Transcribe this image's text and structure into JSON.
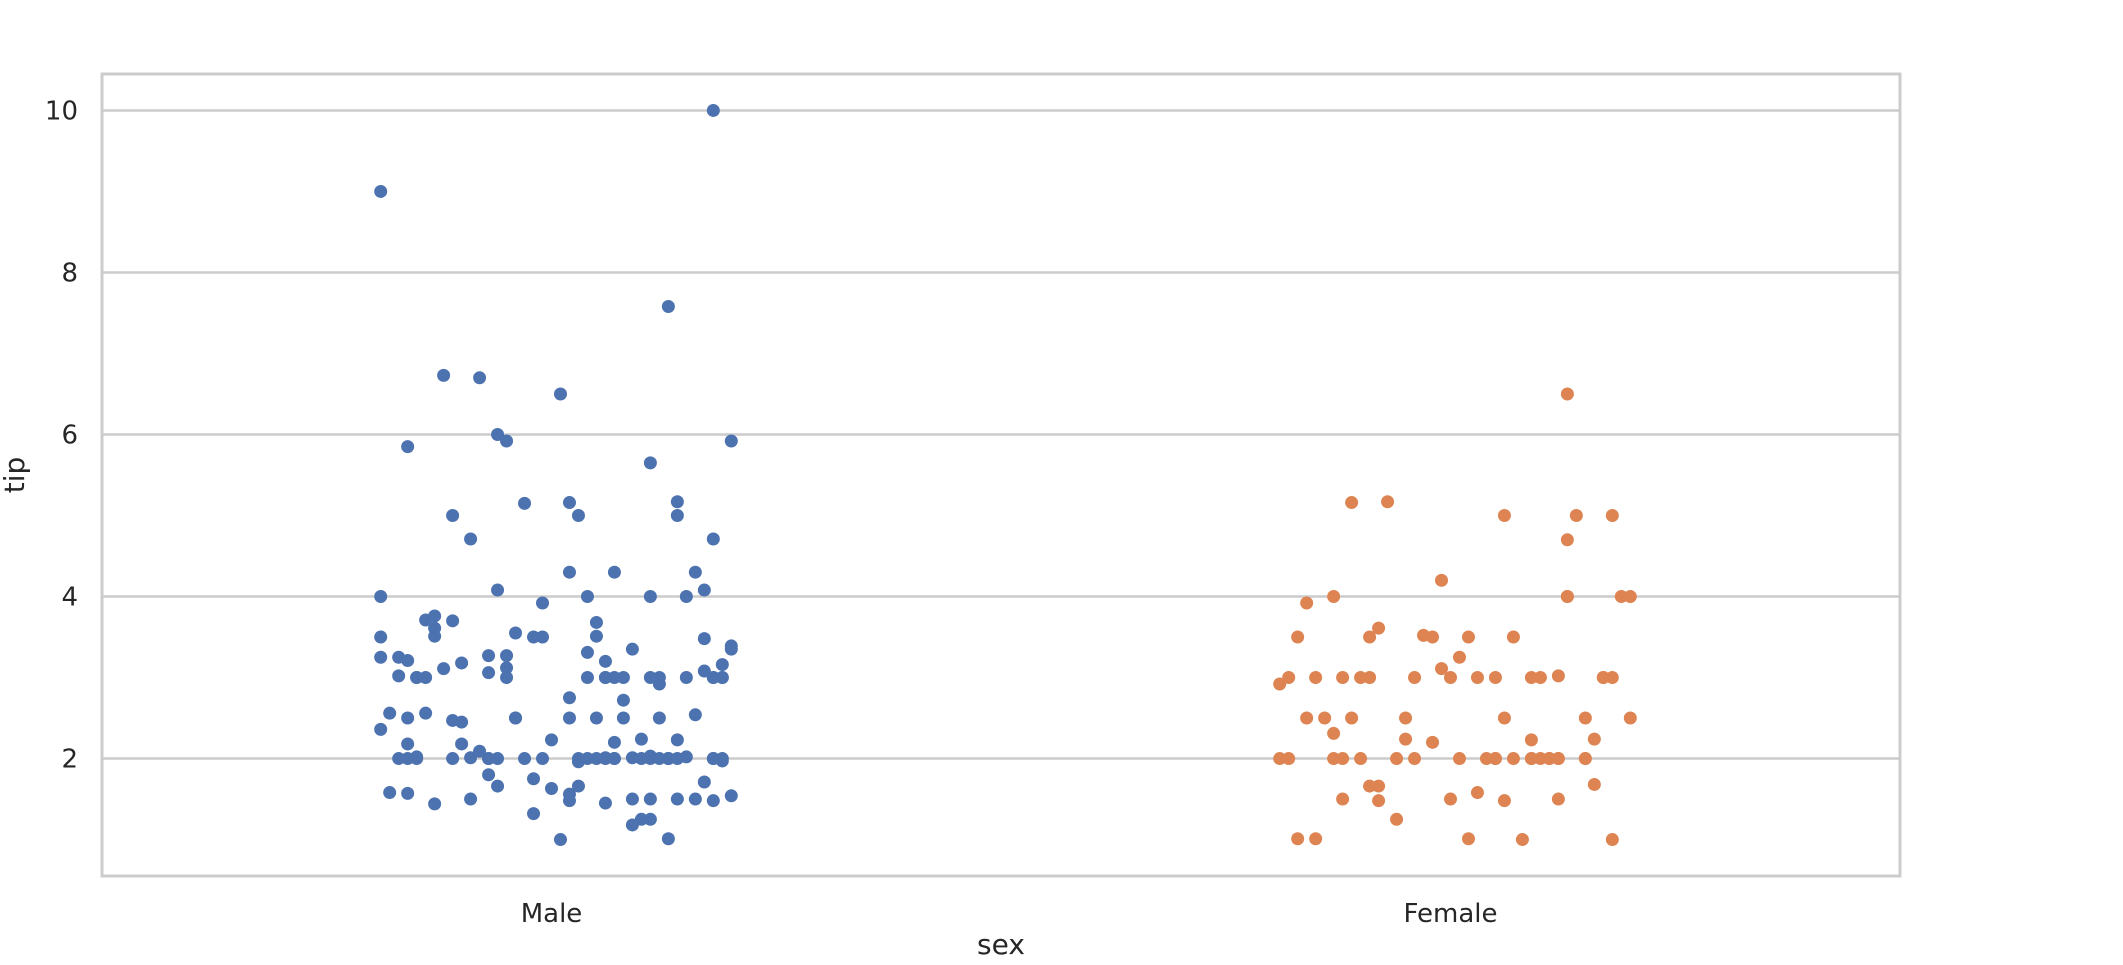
{
  "chart_data": {
    "type": "scatter",
    "title": "",
    "xlabel": "sex",
    "ylabel": "tip",
    "categories": [
      "Male",
      "Female"
    ],
    "ylim": [
      0.55,
      10.45
    ],
    "yticks": [
      2,
      4,
      6,
      8,
      10
    ],
    "grid": true,
    "legend": "none",
    "colors": {
      "Male": "#4c72b0",
      "Female": "#dd8452",
      "grid": "#cccccc",
      "frame": "#cccccc"
    },
    "series": [
      {
        "category": "Male",
        "points": [
          [
            0.13,
            1.01
          ],
          [
            -0.01,
            3.5
          ],
          [
            0.04,
            3.31
          ],
          [
            0.18,
            4.71
          ],
          [
            -0.13,
            3.61
          ],
          [
            -0.09,
            4.71
          ],
          [
            0.07,
            2.0
          ],
          [
            0.03,
            1.96
          ],
          [
            0.17,
            1.71
          ],
          [
            0.03,
            5.0
          ],
          [
            -0.16,
            1.57
          ],
          [
            -0.15,
            3.0
          ],
          [
            -0.01,
            3.92
          ],
          [
            -0.14,
            3.71
          ],
          [
            0.2,
            3.35
          ],
          [
            -0.06,
            4.08
          ],
          [
            0.02,
            2.75
          ],
          [
            0.0,
            2.23
          ],
          [
            -0.11,
            5.0
          ],
          [
            0.11,
            2.0
          ],
          [
            0.15,
            3.0
          ],
          [
            0.09,
            1.5
          ],
          [
            -0.05,
            3.27
          ],
          [
            0.08,
            2.5
          ],
          [
            -0.12,
            6.73
          ],
          [
            0.16,
            4.3
          ],
          [
            0.06,
            1.45
          ],
          [
            -0.02,
            1.32
          ],
          [
            0.02,
            1.56
          ],
          [
            0.18,
            3.0
          ],
          [
            -0.08,
            6.7
          ],
          [
            0.14,
            5.0
          ],
          [
            -0.14,
            3.0
          ],
          [
            -0.07,
            2.0
          ],
          [
            -0.1,
            2.45
          ],
          [
            -0.16,
            3.21
          ],
          [
            0.13,
            2.0
          ],
          [
            0.06,
            2.01
          ],
          [
            -0.05,
            3.12
          ],
          [
            -0.09,
            2.01
          ],
          [
            0.11,
            2.03
          ],
          [
            0.1,
            2.24
          ],
          [
            0.19,
            3.16
          ],
          [
            0.05,
            2.0
          ],
          [
            0.05,
            2.5
          ],
          [
            -0.03,
            2.0
          ],
          [
            0.11,
            5.65
          ],
          [
            0.01,
            6.5
          ],
          [
            -0.18,
            2.56
          ],
          [
            -0.1,
            2.18
          ],
          [
            0.17,
            3.08
          ],
          [
            0.12,
            3.0
          ],
          [
            0.04,
            2.0
          ],
          [
            -0.13,
            3.76
          ],
          [
            0.03,
            1.66
          ],
          [
            -0.16,
            2.5
          ],
          [
            0.18,
            1.48
          ],
          [
            -0.06,
            6.0
          ],
          [
            -0.16,
            2.18
          ],
          [
            0.11,
            4.0
          ],
          [
            -0.02,
            1.75
          ],
          [
            0.2,
            5.92
          ],
          [
            -0.19,
            2.36
          ],
          [
            -0.09,
            1.5
          ],
          [
            -0.19,
            4.0
          ],
          [
            0.09,
            2.01
          ],
          [
            -0.17,
            3.25
          ],
          [
            0.02,
            4.3
          ],
          [
            -0.07,
            2.0
          ],
          [
            0.14,
            2.23
          ],
          [
            -0.15,
            3.0
          ],
          [
            0.07,
            4.3
          ],
          [
            -0.13,
            1.44
          ],
          [
            -0.01,
            2.0
          ],
          [
            0.16,
            1.5
          ],
          [
            0.06,
            3.0
          ],
          [
            -0.03,
            5.15
          ],
          [
            0.13,
            7.58
          ],
          [
            0.04,
            3.0
          ],
          [
            0.02,
            1.48
          ],
          [
            -0.06,
            2.0
          ],
          [
            0.0,
            1.63
          ],
          [
            0.19,
            1.97
          ],
          [
            0.06,
            2.0
          ],
          [
            -0.17,
            2.0
          ],
          [
            0.12,
            2.0
          ],
          [
            -0.11,
            2.0
          ],
          [
            0.09,
            3.35
          ],
          [
            -0.07,
            3.06
          ],
          [
            0.08,
            3.0
          ],
          [
            0.13,
            2.0
          ],
          [
            -0.17,
            3.02
          ],
          [
            0.05,
            3.51
          ],
          [
            0.18,
            2.0
          ],
          [
            -0.13,
            3.51
          ],
          [
            -0.04,
            2.5
          ],
          [
            0.06,
            3.0
          ],
          [
            0.16,
            2.54
          ],
          [
            0.2,
            3.39
          ],
          [
            0.14,
            5.17
          ],
          [
            -0.19,
            9.0
          ],
          [
            0.02,
            5.16
          ],
          [
            -0.08,
            2.09
          ],
          [
            0.19,
            3.0
          ],
          [
            -0.19,
            3.5
          ],
          [
            0.19,
            3.0
          ],
          [
            0.11,
            1.5
          ],
          [
            -0.07,
            1.8
          ],
          [
            0.1,
            2.0
          ],
          [
            -0.12,
            3.11
          ],
          [
            0.13,
            2.0
          ],
          [
            0.03,
            2.0
          ],
          [
            -0.04,
            2.5
          ],
          [
            0.01,
            1.0
          ],
          [
            0.1,
            1.25
          ],
          [
            0.2,
            1.54
          ],
          [
            -0.02,
            3.5
          ],
          [
            0.05,
            3.68
          ],
          [
            -0.15,
            2.02
          ],
          [
            0.12,
            2.5
          ],
          [
            0.06,
            3.2
          ],
          [
            0.07,
            2.2
          ],
          [
            0.17,
            3.48
          ],
          [
            -0.11,
            3.7
          ],
          [
            0.18,
            2.0
          ],
          [
            0.09,
            1.18
          ],
          [
            -0.1,
            3.18
          ],
          [
            0.12,
            2.92
          ],
          [
            -0.04,
            3.55
          ],
          [
            0.18,
            10.0
          ],
          [
            -0.19,
            3.25
          ],
          [
            0.15,
            2.02
          ],
          [
            0.17,
            4.08
          ],
          [
            -0.11,
            2.47
          ],
          [
            0.14,
            1.5
          ],
          [
            -0.15,
            2.0
          ],
          [
            -0.05,
            5.92
          ],
          [
            0.08,
            2.72
          ],
          [
            -0.06,
            1.66
          ],
          [
            0.11,
            3.0
          ],
          [
            0.18,
            3.0
          ],
          [
            0.02,
            2.5
          ],
          [
            0.14,
            2.0
          ],
          [
            0.15,
            4.0
          ],
          [
            -0.18,
            1.58
          ],
          [
            0.19,
            2.0
          ],
          [
            -0.16,
            5.85
          ],
          [
            0.07,
            3.0
          ],
          [
            -0.05,
            3.0
          ],
          [
            0.04,
            4.0
          ],
          [
            -0.07,
            3.27
          ],
          [
            -0.14,
            2.56
          ],
          [
            0.11,
            1.25
          ],
          [
            -0.16,
            2.0
          ],
          [
            0.07,
            2.0
          ]
        ]
      },
      {
        "category": "Female",
        "points": [
          [
            -0.17,
            1.01
          ],
          [
            -0.08,
            3.61
          ],
          [
            0.06,
            5.0
          ],
          [
            0.12,
            3.02
          ],
          [
            -0.16,
            3.92
          ],
          [
            -0.04,
            3.0
          ],
          [
            0.1,
            2.0
          ],
          [
            -0.09,
            3.5
          ],
          [
            0.0,
            1.5
          ],
          [
            0.18,
            1.0
          ],
          [
            -0.13,
            4.0
          ],
          [
            0.05,
            3.0
          ],
          [
            0.15,
            2.5
          ],
          [
            -0.19,
            2.0
          ],
          [
            0.09,
            2.23
          ],
          [
            0.02,
            3.5
          ],
          [
            -0.05,
            2.24
          ],
          [
            0.13,
            4.0
          ],
          [
            0.05,
            2.0
          ],
          [
            -0.12,
            1.5
          ],
          [
            0.09,
            3.0
          ],
          [
            -0.15,
            3.0
          ],
          [
            0.2,
            2.5
          ],
          [
            0.16,
            1.68
          ],
          [
            -0.11,
            5.16
          ],
          [
            0.13,
            4.0
          ],
          [
            -0.02,
            3.5
          ],
          [
            0.07,
            2.0
          ],
          [
            -0.08,
            1.48
          ],
          [
            0.12,
            2.0
          ],
          [
            -0.16,
            2.5
          ],
          [
            0.0,
            3.0
          ],
          [
            0.17,
            3.0
          ],
          [
            -0.19,
            2.92
          ],
          [
            -0.13,
            2.31
          ],
          [
            0.06,
            1.48
          ],
          [
            0.11,
            2.0
          ],
          [
            0.02,
            1.01
          ],
          [
            -0.06,
            2.0
          ],
          [
            -0.1,
            3.0
          ],
          [
            0.03,
            1.58
          ],
          [
            0.15,
            2.0
          ],
          [
            -0.07,
            5.17
          ],
          [
            -0.18,
            2.0
          ],
          [
            -0.12,
            3.0
          ],
          [
            0.09,
            2.0
          ],
          [
            0.06,
            2.5
          ],
          [
            -0.13,
            2.0
          ],
          [
            0.18,
            3.0
          ],
          [
            -0.04,
            2.0
          ],
          [
            0.12,
            1.5
          ],
          [
            -0.09,
            1.66
          ],
          [
            -0.01,
            3.11
          ],
          [
            0.01,
            2.0
          ],
          [
            0.1,
            3.0
          ],
          [
            -0.15,
            1.01
          ],
          [
            0.13,
            6.5
          ],
          [
            -0.11,
            2.5
          ],
          [
            -0.03,
            3.52
          ],
          [
            0.15,
            2.0
          ],
          [
            -0.08,
            1.66
          ],
          [
            0.07,
            3.5
          ],
          [
            0.18,
            5.0
          ],
          [
            0.03,
            3.0
          ],
          [
            -0.02,
            2.2
          ],
          [
            -0.17,
            3.5
          ],
          [
            0.19,
            4.0
          ],
          [
            0.14,
            5.0
          ],
          [
            -0.1,
            2.0
          ],
          [
            0.11,
            2.0
          ],
          [
            -0.05,
            2.5
          ],
          [
            -0.14,
            2.5
          ],
          [
            0.2,
            4.0
          ],
          [
            0.01,
            3.25
          ],
          [
            -0.18,
            3.0
          ],
          [
            -0.06,
            1.25
          ],
          [
            0.08,
            1.0
          ],
          [
            0.16,
            2.24
          ],
          [
            -0.12,
            2.0
          ],
          [
            0.04,
            2.0
          ],
          [
            -0.09,
            3.0
          ],
          [
            0.13,
            4.7
          ],
          [
            0.17,
            3.0
          ],
          [
            -0.01,
            4.2
          ],
          [
            0.05,
            2.0
          ],
          [
            0.09,
            2.0
          ],
          [
            0.12,
            2.0
          ]
        ]
      }
    ]
  }
}
